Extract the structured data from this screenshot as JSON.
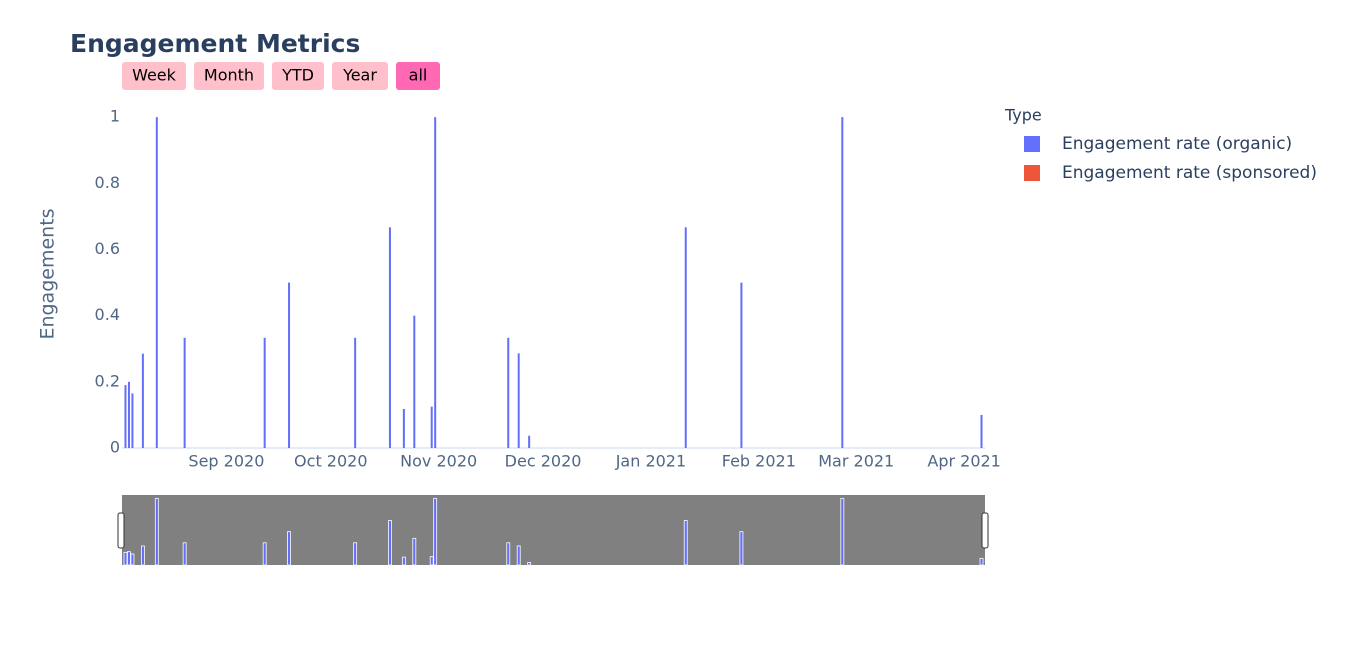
{
  "chart_data": {
    "type": "bar",
    "title": "Engagement Metrics",
    "buttons": [
      "Week",
      "Month",
      "YTD",
      "Year",
      "all"
    ],
    "active_button": 4,
    "y_label": "Engagements",
    "legend_title": "Type",
    "x": [
      "2020-08-03",
      "2020-08-04",
      "2020-08-05",
      "2020-08-08",
      "2020-08-12",
      "2020-08-20",
      "2020-09-12",
      "2020-09-19",
      "2020-10-08",
      "2020-10-18",
      "2020-10-22",
      "2020-10-25",
      "2020-10-30",
      "2020-10-31",
      "2020-11-21",
      "2020-11-24",
      "2020-11-27",
      "2021-01-11",
      "2021-01-27",
      "2021-02-25",
      "2021-04-06"
    ],
    "series": [
      {
        "name": "Engagement rate (organic)",
        "color": "#636efa",
        "values": [
          0.19,
          0.2,
          0.165,
          0.285,
          1,
          0.333,
          0.333,
          0.5,
          0.333,
          0.667,
          0.118,
          0.4,
          0.125,
          1,
          0.333,
          0.286,
          0.037,
          0.667,
          0.5,
          1,
          0.1
        ]
      },
      {
        "name": "Engagement rate (sponsored)",
        "color": "#ef553b",
        "values": [
          null,
          null,
          null,
          null,
          null,
          null,
          null,
          null,
          null,
          null,
          null,
          null,
          null,
          null,
          null,
          null,
          null,
          null,
          null,
          null,
          null
        ]
      }
    ],
    "xlim": [
      "2020-08-02",
      "2021-04-07"
    ],
    "xticks": [
      {
        "value": "2020-09-01",
        "label": "Sep 2020"
      },
      {
        "value": "2020-10-01",
        "label": "Oct 2020"
      },
      {
        "value": "2020-11-01",
        "label": "Nov 2020"
      },
      {
        "value": "2020-12-01",
        "label": "Dec 2020"
      },
      {
        "value": "2021-01-01",
        "label": "Jan 2021"
      },
      {
        "value": "2021-02-01",
        "label": "Feb 2021"
      },
      {
        "value": "2021-03-01",
        "label": "Mar 2021"
      },
      {
        "value": "2021-04-01",
        "label": "Apr 2021"
      }
    ],
    "ylim": [
      0,
      1.05
    ],
    "yticks": [
      0,
      0.2,
      0.4,
      0.6,
      0.8,
      1
    ],
    "grid": false,
    "range_slider": true,
    "legend_position": "right"
  }
}
